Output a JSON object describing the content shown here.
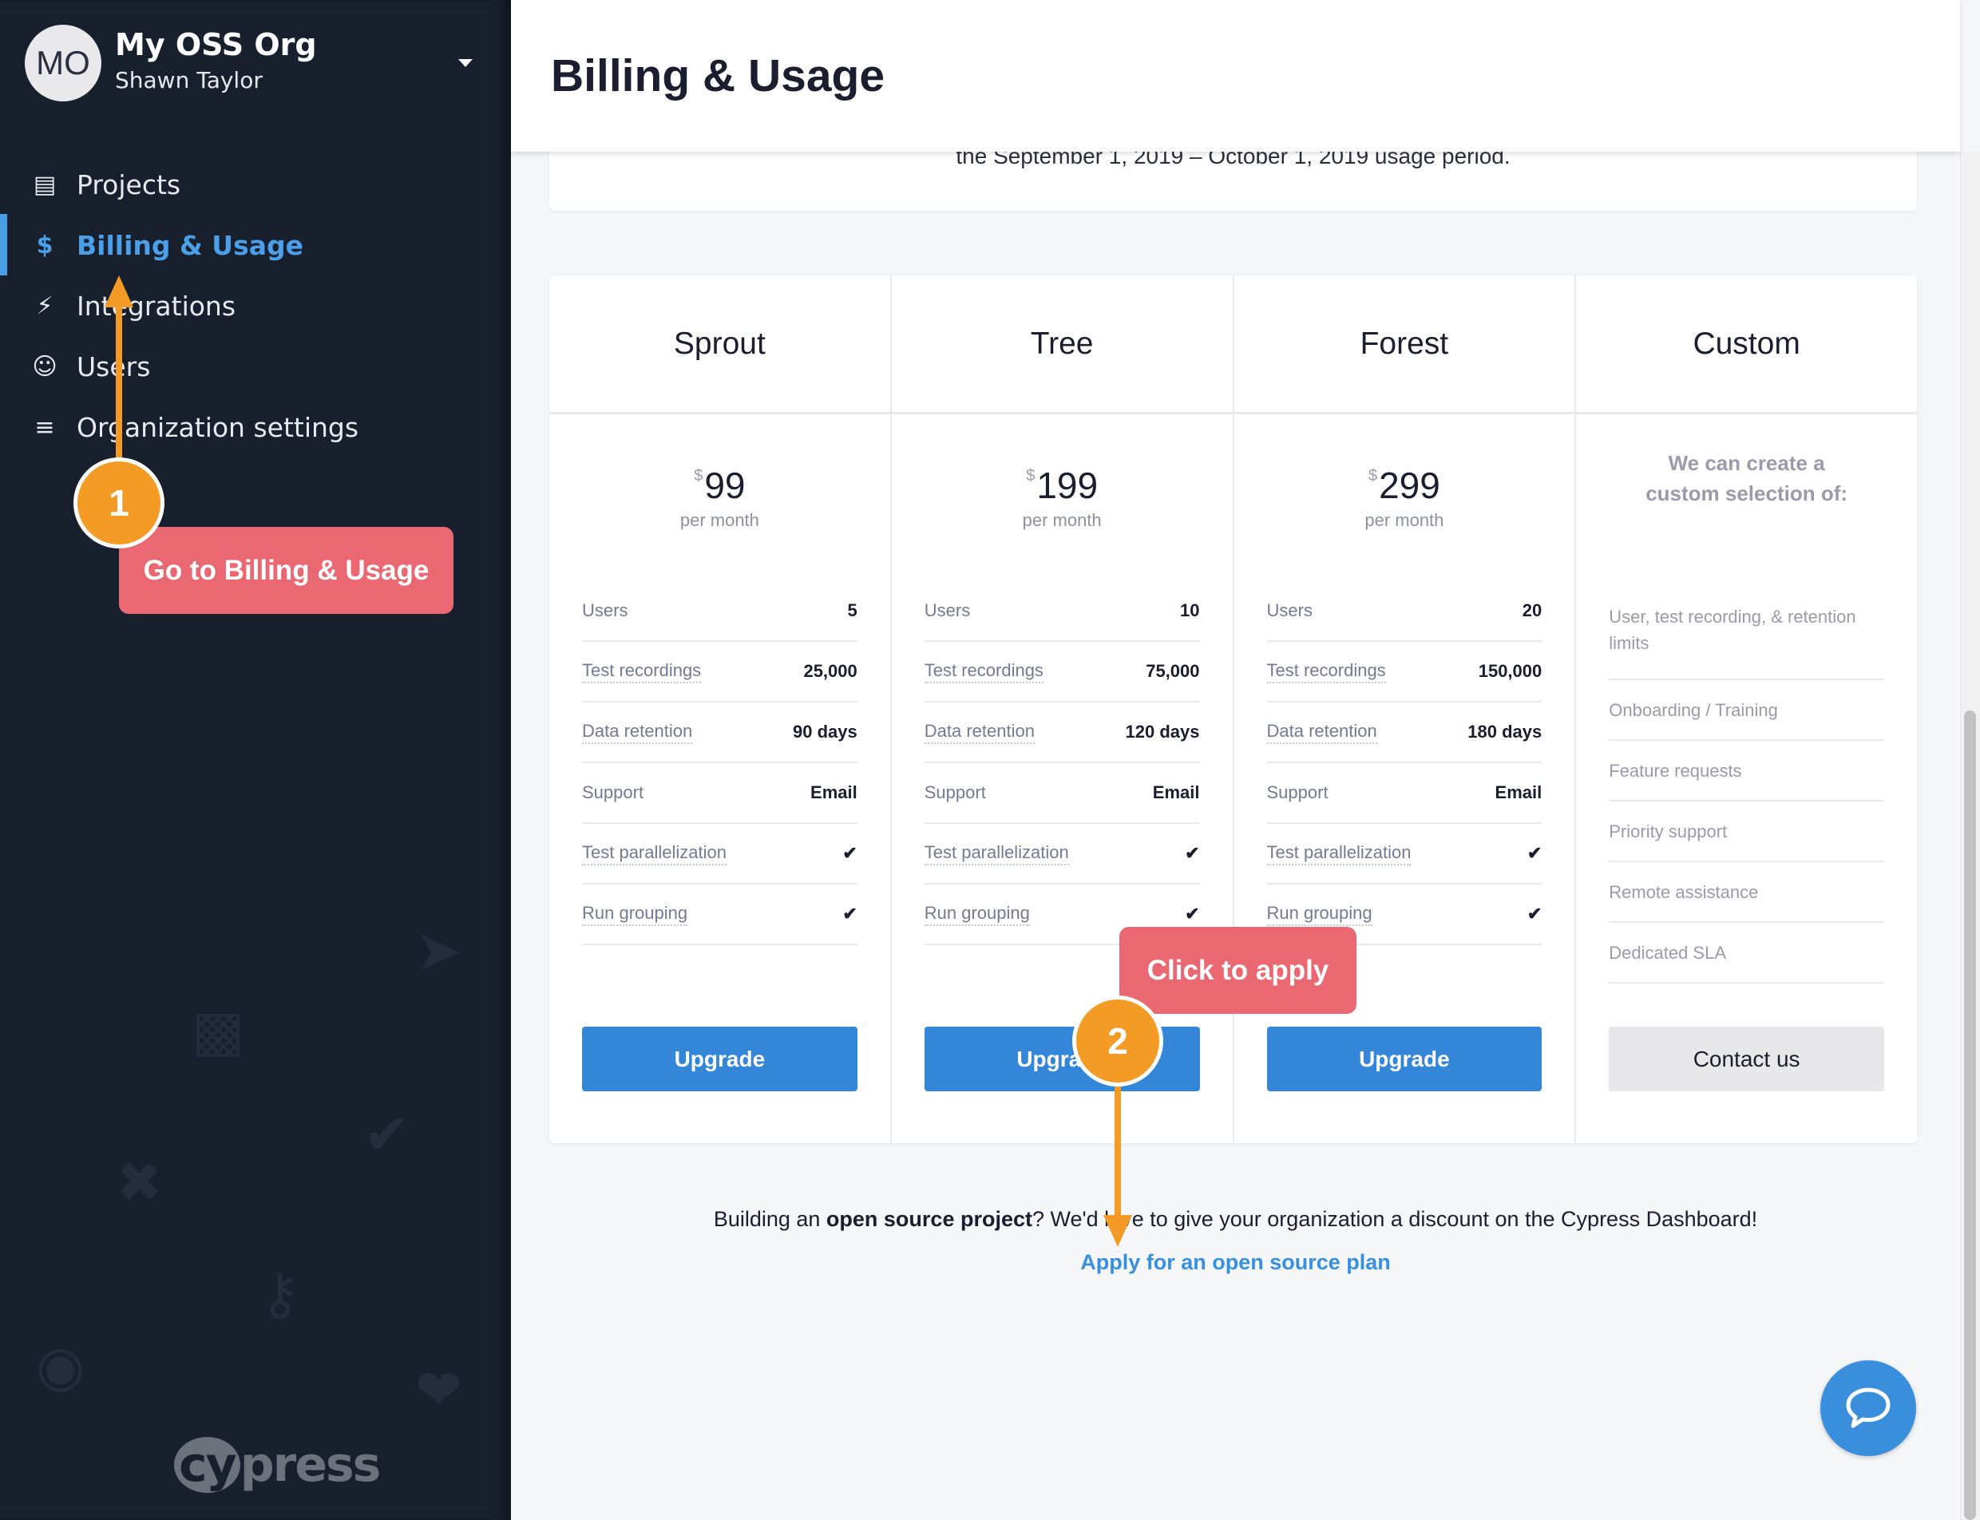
{
  "sidebar": {
    "avatar_initials": "MO",
    "org_name": "My OSS Org",
    "user_name": "Shawn Taylor",
    "items": [
      {
        "label": "Projects",
        "icon": "book-icon",
        "active": false
      },
      {
        "label": "Billing & Usage",
        "icon": "dollar-icon",
        "active": true
      },
      {
        "label": "Integrations",
        "icon": "plug-icon",
        "active": false
      },
      {
        "label": "Users",
        "icon": "user-circle-icon",
        "active": false
      },
      {
        "label": "Organization settings",
        "icon": "sliders-icon",
        "active": false
      }
    ],
    "logo": "cypress",
    "accent_color": "#4a9fe8"
  },
  "header": {
    "title": "Billing & Usage"
  },
  "usage_card": {
    "text": "the September 1, 2019 – October 1, 2019 usage period."
  },
  "plans": [
    {
      "name": "Sprout",
      "currency": "$",
      "price": "99",
      "period": "per month",
      "features": [
        [
          "Users",
          "5"
        ],
        [
          "Test recordings",
          "25,000"
        ],
        [
          "Data retention",
          "90 days"
        ],
        [
          "Support",
          "Email"
        ],
        [
          "Test parallelization",
          "check"
        ],
        [
          "Run grouping",
          "check"
        ]
      ],
      "button": "Upgrade"
    },
    {
      "name": "Tree",
      "currency": "$",
      "price": "199",
      "period": "per month",
      "features": [
        [
          "Users",
          "10"
        ],
        [
          "Test recordings",
          "75,000"
        ],
        [
          "Data retention",
          "120 days"
        ],
        [
          "Support",
          "Email"
        ],
        [
          "Test parallelization",
          "check"
        ],
        [
          "Run grouping",
          "check"
        ]
      ],
      "button": "Upgrade"
    },
    {
      "name": "Forest",
      "currency": "$",
      "price": "299",
      "period": "per month",
      "features": [
        [
          "Users",
          "20"
        ],
        [
          "Test recordings",
          "150,000"
        ],
        [
          "Data retention",
          "180 days"
        ],
        [
          "Support",
          "Email"
        ],
        [
          "Test parallelization",
          "check"
        ],
        [
          "Run grouping",
          "check"
        ]
      ],
      "button": "Upgrade"
    }
  ],
  "custom_plan": {
    "name": "Custom",
    "intro_line1": "We can create a",
    "intro_line2": "custom selection of:",
    "items": [
      "User, test recording, & retention limits",
      "Onboarding / Training",
      "Feature requests",
      "Priority support",
      "Remote assistance",
      "Dedicated SLA"
    ],
    "button": "Contact us"
  },
  "oss": {
    "text_before": "Building an ",
    "text_bold": "open source project",
    "text_after": "? We'd love to give your organization a discount on the Cypress Dashboard!",
    "link": "Apply for an open source plan"
  },
  "annotations": {
    "step1": "1",
    "step1_label": "Go to Billing & Usage",
    "step2": "2",
    "step2_label": "Click to apply",
    "tooltip_color": "#e96872",
    "step_color": "#f39b25"
  },
  "colors": {
    "primary_button": "#3486d8",
    "link": "#3a8fdc",
    "sidebar_bg": "#18202d"
  }
}
